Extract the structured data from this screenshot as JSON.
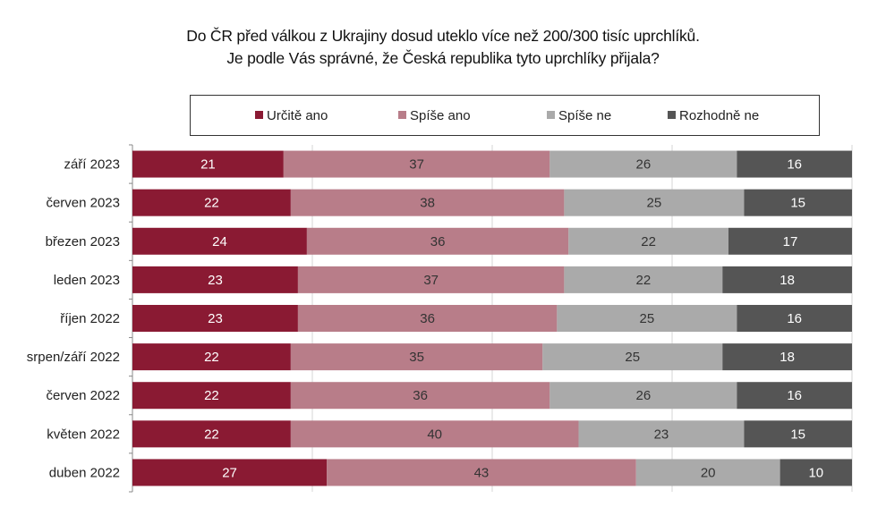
{
  "title_lines": [
    "Do ČR před válkou z Ukrajiny dosud uteklo více než 200/300 tisíc uprchlíků.",
    "Je podle Vás správné, že Česká republika tyto uprchlíky přijala?"
  ],
  "chart_data": {
    "type": "bar",
    "orientation": "horizontal",
    "stacked": true,
    "percent_stacked": true,
    "title": "Do ČR před válkou z Ukrajiny dosud uteklo více než 200/300 tisíc uprchlíků. Je podle Vás správné, že Česká republika tyto uprchlíky přijala?",
    "categories": [
      "září 2023",
      "červen 2023",
      "březen 2023",
      "leden 2023",
      "říjen 2022",
      "srpen/září 2022",
      "červen 2022",
      "květen 2022",
      "duben 2022"
    ],
    "series": [
      {
        "name": "Určitě ano",
        "color": "#8a1a33",
        "label_color": "#ffffff",
        "values": [
          21,
          22,
          24,
          23,
          23,
          22,
          22,
          22,
          27
        ]
      },
      {
        "name": "Spíše ano",
        "color": "#b87d89",
        "label_color": "#333333",
        "values": [
          37,
          38,
          36,
          37,
          36,
          35,
          36,
          40,
          43
        ]
      },
      {
        "name": "Spíše ne",
        "color": "#aaaaaa",
        "label_color": "#333333",
        "values": [
          26,
          25,
          22,
          22,
          25,
          25,
          26,
          23,
          20
        ]
      },
      {
        "name": "Rozhodně ne",
        "color": "#555555",
        "label_color": "#ffffff",
        "values": [
          16,
          15,
          17,
          18,
          16,
          18,
          16,
          15,
          10
        ]
      }
    ],
    "legend_position": "top",
    "grid": true
  }
}
